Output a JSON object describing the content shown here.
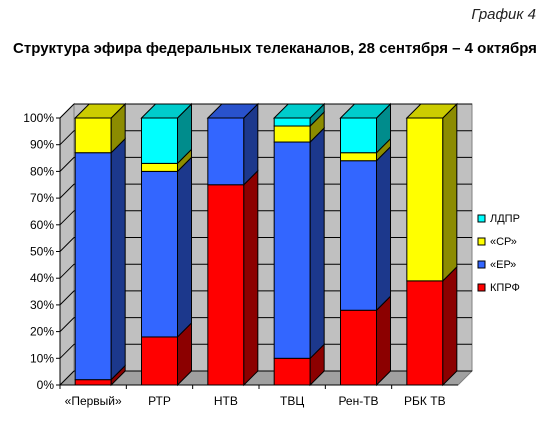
{
  "header": {
    "label": "График 4",
    "title": "Структура эфира федеральных телеканалов, 28 сентября – 4 октября"
  },
  "chart_data": {
    "type": "bar",
    "stacked": true,
    "percent_stacked": true,
    "three_d": true,
    "categories": [
      "«Первый»",
      "РТР",
      "НТВ",
      "ТВЦ",
      "Рен-ТВ",
      "РБК ТВ"
    ],
    "series": [
      {
        "name": "КПРФ",
        "color": "#ff0000",
        "values": [
          2,
          18,
          75,
          10,
          28,
          39
        ]
      },
      {
        "name": "«ЕР»",
        "color": "#3366ff",
        "values": [
          85,
          62,
          25,
          81,
          56,
          0
        ]
      },
      {
        "name": "«СР»",
        "color": "#ffff00",
        "values": [
          13,
          3,
          0,
          6,
          3,
          61
        ]
      },
      {
        "name": "ЛДПР",
        "color": "#00ffff",
        "values": [
          0,
          17,
          0,
          3,
          13,
          0
        ]
      }
    ],
    "ylim": [
      0,
      100
    ],
    "ytick_labels": [
      "0%",
      "10%",
      "20%",
      "30%",
      "40%",
      "50%",
      "60%",
      "70%",
      "80%",
      "90%",
      "100%"
    ],
    "grid": true,
    "legend_position": "right",
    "legend_order": [
      "ЛДПР",
      "«СР»",
      "«ЕР»",
      "КПРФ"
    ]
  }
}
